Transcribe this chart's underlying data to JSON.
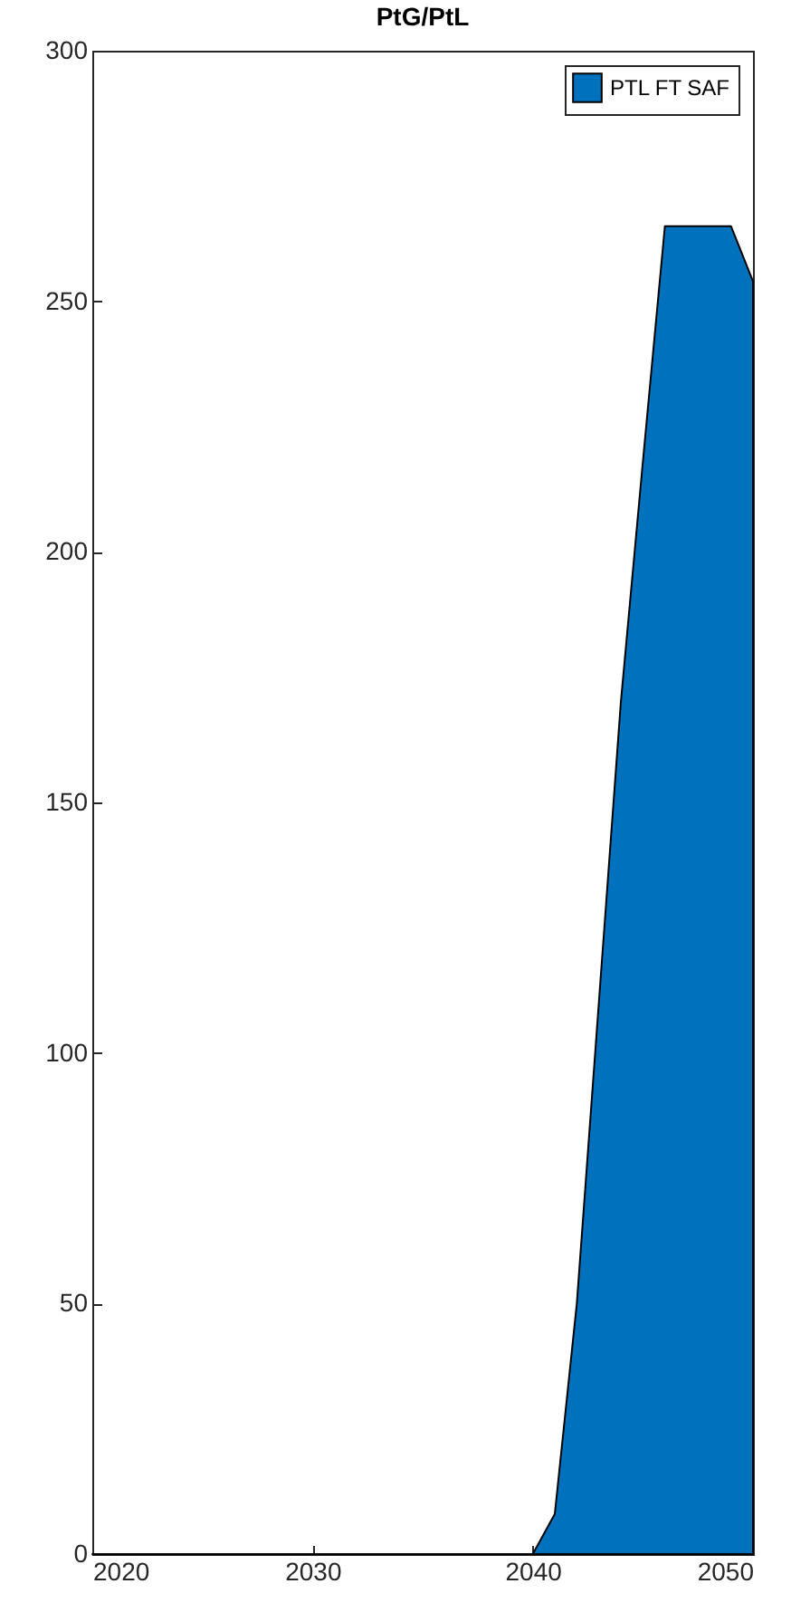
{
  "chart_data": {
    "type": "area",
    "title": "PtG/PtL",
    "x": [
      2020,
      2021,
      2022,
      2023,
      2024,
      2025,
      2026,
      2027,
      2028,
      2029,
      2030,
      2031,
      2032,
      2033,
      2034,
      2035,
      2036,
      2037,
      2038,
      2039,
      2040,
      2041,
      2042,
      2043,
      2044,
      2045,
      2046,
      2047,
      2048,
      2049,
      2050
    ],
    "series": [
      {
        "name": "PTL FT SAF",
        "color": "#0072bd",
        "values": [
          0,
          0,
          0,
          0,
          0,
          0,
          0,
          0,
          0,
          0,
          0,
          0,
          0,
          0,
          0,
          0,
          0,
          0,
          0,
          0,
          0,
          8,
          50,
          110,
          170,
          218,
          265,
          265,
          265,
          265,
          254
        ]
      }
    ],
    "xlim": [
      2020,
      2050
    ],
    "xticks": [
      2020,
      2030,
      2040,
      2050
    ],
    "ylim": [
      0,
      300
    ],
    "yticks": [
      0,
      50,
      100,
      150,
      200,
      250,
      300
    ],
    "legend": "top right"
  }
}
